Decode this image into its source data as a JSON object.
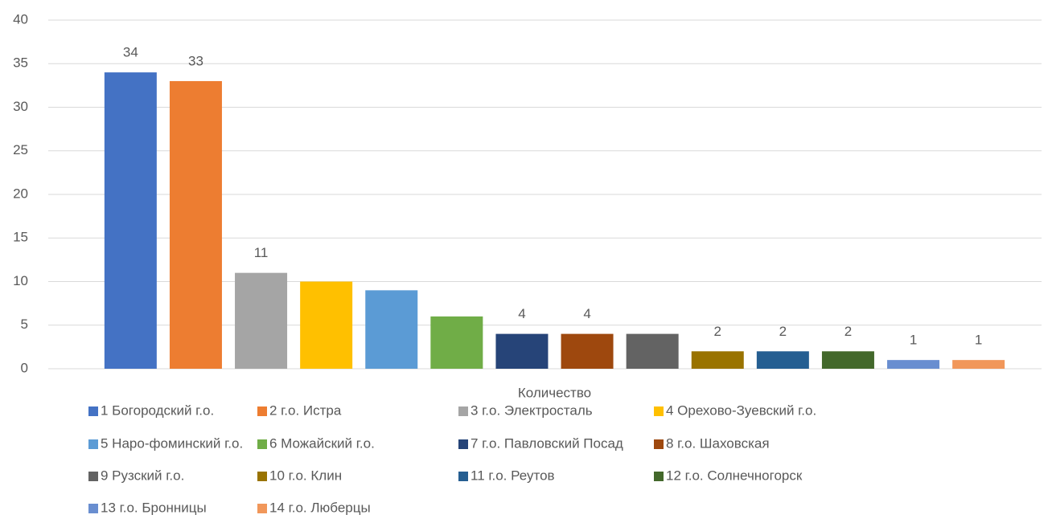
{
  "chart_data": {
    "type": "bar",
    "categories": [
      "Количество"
    ],
    "series": [
      {
        "name": "1 Богородский г.о.",
        "color": "#4472c4",
        "values": [
          34
        ],
        "value_labels": [
          "34"
        ]
      },
      {
        "name": "2 г.о. Истра",
        "color": "#ed7d31",
        "values": [
          33
        ],
        "value_labels": [
          "33"
        ]
      },
      {
        "name": "3 г.о. Электросталь",
        "color": "#a5a5a5",
        "values": [
          11
        ],
        "value_labels": [
          "11"
        ]
      },
      {
        "name": "4 Орехово-Зуевский г.о.",
        "color": "#ffc000",
        "values": [
          10
        ],
        "value_labels": [
          null
        ]
      },
      {
        "name": "5 Наро-фоминский г.о.",
        "color": "#5b9bd5",
        "values": [
          9
        ],
        "value_labels": [
          null
        ]
      },
      {
        "name": "6 Можайский г.о.",
        "color": "#70ad47",
        "values": [
          6
        ],
        "value_labels": [
          null
        ]
      },
      {
        "name": "7 г.о. Павловский Посад",
        "color": "#264478",
        "values": [
          4
        ],
        "value_labels": [
          "4"
        ]
      },
      {
        "name": "8 г.о. Шаховская",
        "color": "#9e480e",
        "values": [
          4
        ],
        "value_labels": [
          "4"
        ]
      },
      {
        "name": "9 Рузский г.о.",
        "color": "#636363",
        "values": [
          4
        ],
        "value_labels": [
          null
        ]
      },
      {
        "name": "10 г.о. Клин",
        "color": "#997300",
        "values": [
          2
        ],
        "value_labels": [
          "2"
        ]
      },
      {
        "name": "11 г.о. Реутов",
        "color": "#255e91",
        "values": [
          2
        ],
        "value_labels": [
          "2"
        ]
      },
      {
        "name": "12 г.о. Солнечногорск",
        "color": "#43682b",
        "values": [
          2
        ],
        "value_labels": [
          "2"
        ]
      },
      {
        "name": "13 г.о. Бронницы",
        "color": "#698ed0",
        "values": [
          1
        ],
        "value_labels": [
          "1"
        ]
      },
      {
        "name": "14 г.о. Люберцы",
        "color": "#f1975a",
        "values": [
          1
        ],
        "value_labels": [
          "1"
        ]
      }
    ],
    "ylim": [
      0,
      40
    ],
    "yticks": [
      0,
      5,
      10,
      15,
      20,
      25,
      30,
      35,
      40
    ],
    "grid": true,
    "legend": "bottom"
  }
}
